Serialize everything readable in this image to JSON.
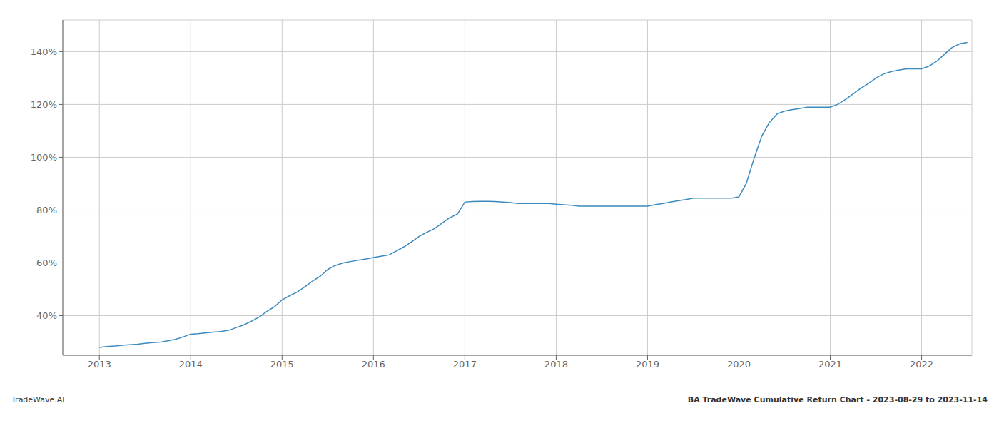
{
  "chart_data": {
    "type": "line",
    "annotations": [
      "TradeWave.AI",
      "BA TradeWave Cumulative Return Chart - 2023-08-29 to 2023-11-14"
    ],
    "x": [
      2013.0,
      2013.08,
      2013.17,
      2013.25,
      2013.33,
      2013.42,
      2013.5,
      2013.58,
      2013.67,
      2013.75,
      2013.83,
      2013.92,
      2014.0,
      2014.08,
      2014.17,
      2014.25,
      2014.33,
      2014.42,
      2014.5,
      2014.58,
      2014.67,
      2014.75,
      2014.83,
      2014.92,
      2015.0,
      2015.08,
      2015.17,
      2015.25,
      2015.33,
      2015.42,
      2015.5,
      2015.58,
      2015.67,
      2015.75,
      2015.83,
      2015.92,
      2016.0,
      2016.08,
      2016.17,
      2016.25,
      2016.33,
      2016.42,
      2016.5,
      2016.58,
      2016.67,
      2016.75,
      2016.83,
      2016.92,
      2017.0,
      2017.08,
      2017.17,
      2017.25,
      2017.33,
      2017.42,
      2017.5,
      2017.58,
      2017.67,
      2017.75,
      2017.83,
      2017.92,
      2018.0,
      2018.08,
      2018.17,
      2018.25,
      2018.33,
      2018.42,
      2018.5,
      2018.58,
      2018.67,
      2018.75,
      2018.83,
      2018.92,
      2019.0,
      2019.08,
      2019.17,
      2019.25,
      2019.33,
      2019.42,
      2019.5,
      2019.58,
      2019.67,
      2019.75,
      2019.83,
      2019.92,
      2020.0,
      2020.08,
      2020.17,
      2020.25,
      2020.33,
      2020.42,
      2020.5,
      2020.58,
      2020.67,
      2020.75,
      2020.83,
      2020.92,
      2021.0,
      2021.08,
      2021.17,
      2021.25,
      2021.33,
      2021.42,
      2021.5,
      2021.58,
      2021.67,
      2021.75,
      2021.83,
      2021.92,
      2022.0,
      2022.08,
      2022.17,
      2022.25,
      2022.33,
      2022.42,
      2022.5
    ],
    "values": [
      28,
      28.3,
      28.5,
      28.8,
      29.0,
      29.2,
      29.5,
      29.8,
      30.0,
      30.5,
      31.0,
      32.0,
      33.0,
      33.2,
      33.5,
      33.8,
      34.0,
      34.5,
      35.5,
      36.5,
      38.0,
      39.5,
      41.5,
      43.5,
      46.0,
      47.5,
      49.0,
      51.0,
      53.0,
      55.0,
      57.5,
      59.0,
      60.0,
      60.5,
      61.0,
      61.5,
      62.0,
      62.5,
      63.0,
      64.5,
      66.0,
      68.0,
      70.0,
      71.5,
      73.0,
      75.0,
      77.0,
      78.5,
      83.0,
      83.2,
      83.3,
      83.3,
      83.2,
      83.0,
      82.8,
      82.5,
      82.5,
      82.5,
      82.5,
      82.5,
      82.2,
      82.0,
      81.8,
      81.5,
      81.5,
      81.5,
      81.5,
      81.5,
      81.5,
      81.5,
      81.5,
      81.5,
      81.5,
      82.0,
      82.5,
      83.0,
      83.5,
      84.0,
      84.5,
      84.5,
      84.5,
      84.5,
      84.5,
      84.5,
      85.0,
      90.0,
      100.0,
      108.0,
      113.0,
      116.5,
      117.5,
      118.0,
      118.5,
      119.0,
      119.0,
      119.0,
      119.0,
      120.0,
      122.0,
      124.0,
      126.0,
      128.0,
      130.0,
      131.5,
      132.5,
      133.0,
      133.5,
      133.5,
      133.5,
      134.5,
      136.5,
      139.0,
      141.5,
      143.0,
      143.5
    ],
    "color": "#3a8abf",
    "xlim": [
      2012.6,
      2022.55
    ],
    "xticks": [
      2013,
      2014,
      2015,
      2016,
      2017,
      2018,
      2019,
      2020,
      2021,
      2022
    ],
    "ylim": [
      25,
      152
    ],
    "yticks": [
      {
        "value": 40,
        "label": "40%"
      },
      {
        "value": 60,
        "label": "60%"
      },
      {
        "value": 80,
        "label": "80%"
      },
      {
        "value": 100,
        "label": "100%"
      },
      {
        "value": 120,
        "label": "120%"
      },
      {
        "value": 140,
        "label": "140%"
      }
    ],
    "grid": true
  }
}
